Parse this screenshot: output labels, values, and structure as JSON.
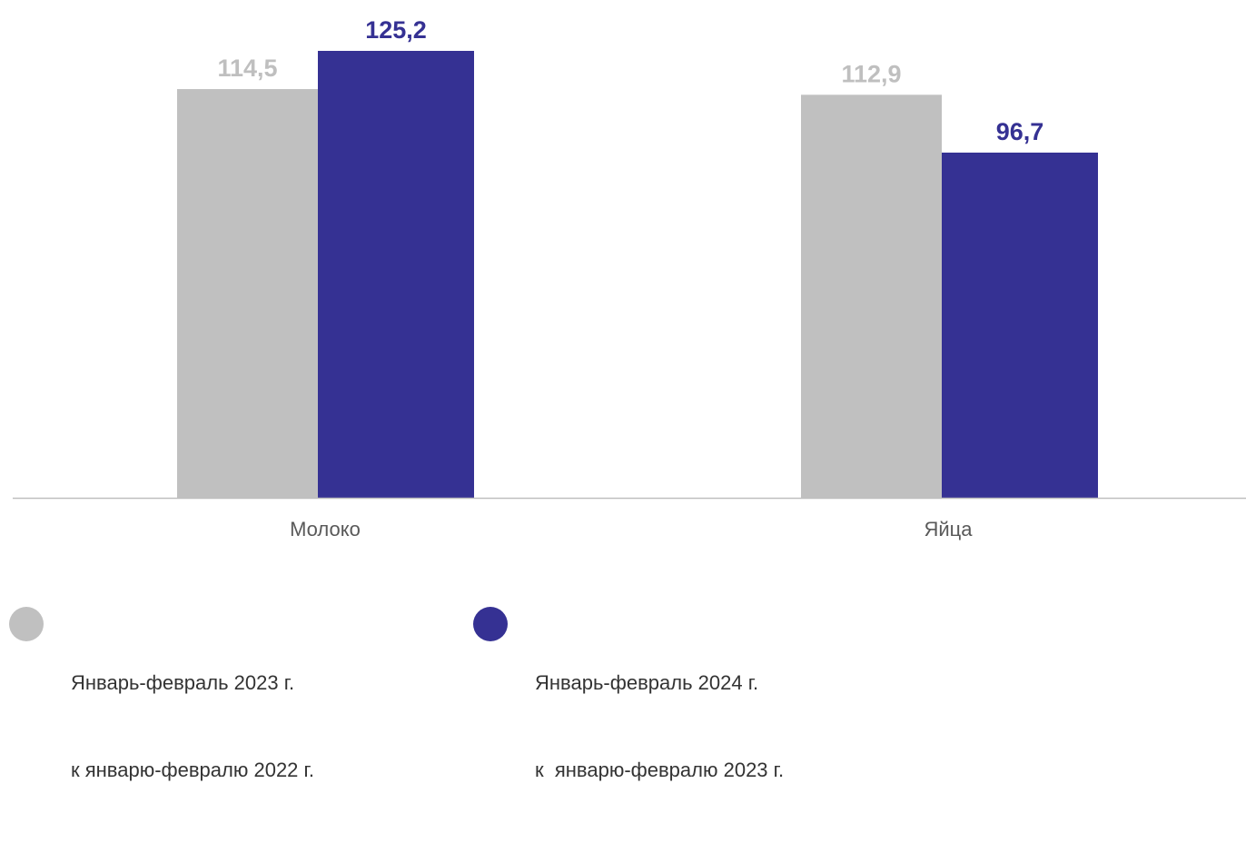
{
  "chart_data": {
    "type": "bar",
    "title": "",
    "xlabel": "",
    "ylabel": "",
    "categories": [
      "Молоко",
      "Яйца"
    ],
    "series": [
      {
        "name": "Январь-февраль 2023 г. к январю-февралю 2022 г.",
        "values": [
          114.5,
          112.9
        ],
        "labels": [
          "114,5",
          "112,9"
        ],
        "color": "#c0c0c0"
      },
      {
        "name": "Январь-февраль 2024 г. к январю-февралю 2023 г.",
        "values": [
          125.2,
          96.7
        ],
        "labels": [
          "125,2",
          "96,7"
        ],
        "color": "#353193"
      }
    ],
    "ylim": [
      0,
      125.2
    ],
    "grid": false,
    "legend_position": "bottom"
  },
  "legend": [
    {
      "line1": "Январь-февраль 2023 г.",
      "line2": "к январю-февралю 2022 г."
    },
    {
      "line1": "Январь-февраль 2024 г.",
      "line2": "к  январю-февралю 2023 г."
    }
  ],
  "colors": {
    "axis": "#bfbfbf",
    "category_text": "#595959",
    "series1_label": "#bfbfbf",
    "series2_label": "#353193"
  }
}
